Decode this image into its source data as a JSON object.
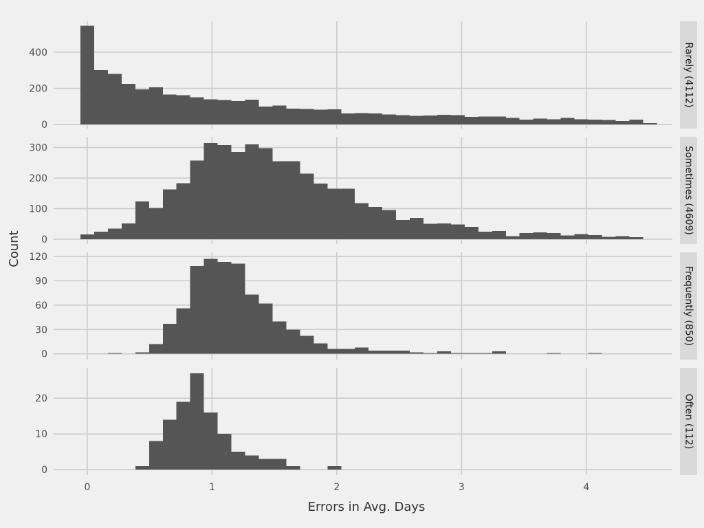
{
  "chart_data": {
    "type": "bar",
    "layout": "faceted histogram, 4 panels stacked vertically, strip labels on the right",
    "xlabel": "Errors in Avg. Days",
    "ylabel": "Count",
    "xlim": [
      -0.27,
      4.69
    ],
    "x_ticks": [
      0,
      1,
      2,
      3,
      4
    ],
    "grid": true,
    "bar_color": "#555555",
    "bin_start": -0.055,
    "bin_width": 0.11,
    "panels": [
      {
        "label": "Rarely (4112)",
        "ylim": [
          -22,
          570
        ],
        "y_ticks": [
          0,
          200,
          400
        ],
        "values": [
          545,
          300,
          280,
          225,
          195,
          205,
          165,
          163,
          150,
          140,
          135,
          130,
          137,
          100,
          105,
          88,
          87,
          83,
          85,
          62,
          63,
          62,
          55,
          52,
          48,
          50,
          53,
          52,
          42,
          45,
          45,
          37,
          27,
          33,
          30,
          37,
          30,
          27,
          25,
          20,
          28,
          8
        ]
      },
      {
        "label": "Sometimes (4609)",
        "ylim": [
          -16,
          335
        ],
        "y_ticks": [
          0,
          100,
          200,
          300
        ],
        "values": [
          15,
          25,
          35,
          52,
          123,
          102,
          163,
          183,
          257,
          315,
          308,
          285,
          310,
          298,
          255,
          255,
          215,
          182,
          165,
          165,
          118,
          105,
          95,
          63,
          70,
          50,
          52,
          48,
          40,
          25,
          27,
          10,
          20,
          22,
          20,
          12,
          17,
          13,
          8,
          10,
          7
        ]
      },
      {
        "label": "Frequently (850)",
        "ylim": [
          -7,
          125
        ],
        "y_ticks": [
          0,
          30,
          60,
          90,
          120
        ],
        "values": [
          0,
          0,
          1,
          0,
          2,
          12,
          37,
          56,
          108,
          117,
          113,
          111,
          73,
          62,
          40,
          30,
          22,
          13,
          6,
          6,
          8,
          4,
          4,
          4,
          2,
          1,
          3,
          1,
          1,
          1,
          3,
          0,
          0,
          0,
          1,
          0,
          0,
          1,
          0,
          0,
          0,
          0
        ]
      },
      {
        "label": "Often (112)",
        "ylim": [
          -1.5,
          28.5
        ],
        "y_ticks": [
          0,
          10,
          20
        ],
        "values": [
          0,
          0,
          0,
          0,
          1,
          8,
          14,
          19,
          27,
          16,
          10,
          5,
          4,
          3,
          3,
          1,
          0,
          0,
          1
        ]
      }
    ]
  }
}
